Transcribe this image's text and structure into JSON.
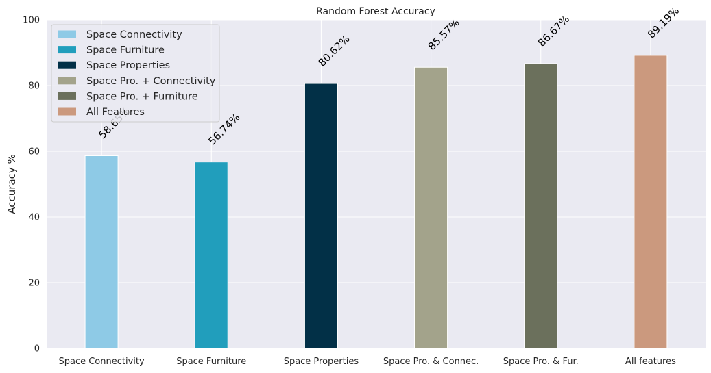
{
  "chart_data": {
    "type": "bar",
    "title": "Random Forest Accuracy",
    "xlabel": "",
    "ylabel": "Accuracy %",
    "ylim": [
      0,
      100
    ],
    "yticks": [
      0,
      20,
      40,
      60,
      80,
      100
    ],
    "grid": true,
    "legend_position": "top-left",
    "categories": [
      "Space Connectivity",
      "Space Furniture",
      "Space Properties",
      "Space Pro. & Connec.",
      "Space Pro. & Fur.",
      "All features"
    ],
    "series": [
      {
        "name": "Space Connectivity",
        "category": "Space Connectivity",
        "value": 58.65,
        "label": "58.65%",
        "color": "#8ecae6"
      },
      {
        "name": "Space Furniture",
        "category": "Space Furniture",
        "value": 56.74,
        "label": "56.74%",
        "color": "#219ebc"
      },
      {
        "name": "Space Properties",
        "category": "Space Properties",
        "value": 80.62,
        "label": "80.62%",
        "color": "#023047"
      },
      {
        "name": "Space Pro. + Connectivity",
        "category": "Space Pro. & Connec.",
        "value": 85.57,
        "label": "85.57%",
        "color": "#a3a38b"
      },
      {
        "name": "Space Pro. + Furniture",
        "category": "Space Pro. & Fur.",
        "value": 86.67,
        "label": "86.67%",
        "color": "#6b705c"
      },
      {
        "name": "All Features",
        "category": "All features",
        "value": 89.19,
        "label": "89.19%",
        "color": "#cb997e"
      }
    ],
    "colors": {
      "plot_background": "#eaeaf2",
      "grid": "#ffffff"
    }
  }
}
